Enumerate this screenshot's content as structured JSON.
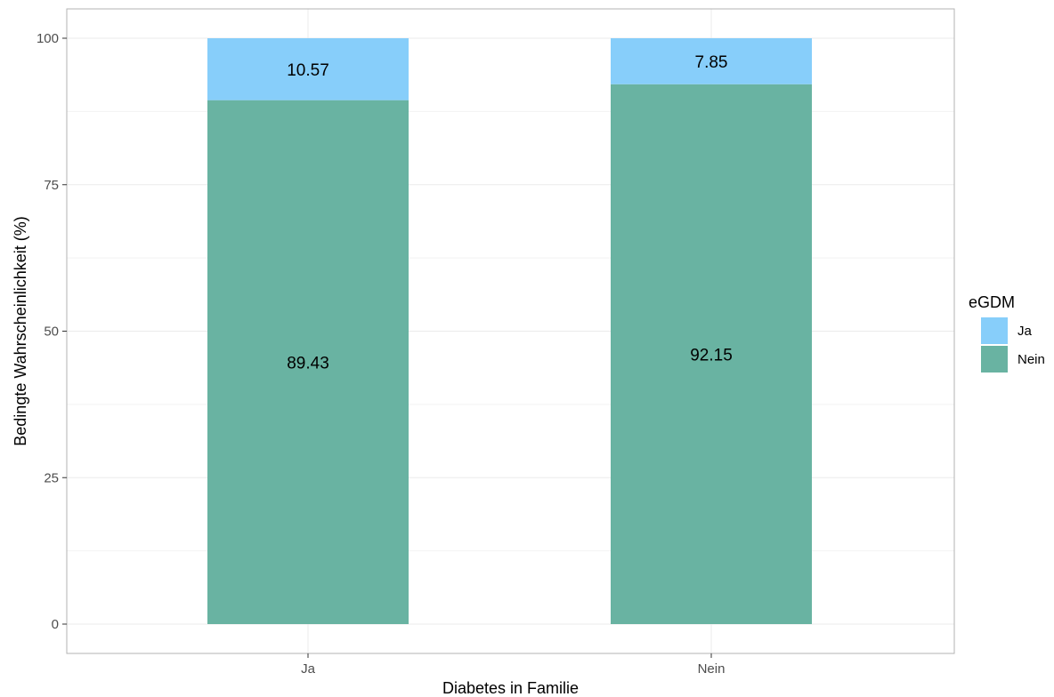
{
  "chart_data": {
    "type": "bar",
    "stacked": true,
    "categories": [
      "Ja",
      "Nein"
    ],
    "series": [
      {
        "name": "Nein",
        "values": [
          89.43,
          92.15
        ],
        "labels": [
          "89.43",
          "92.15"
        ],
        "color": "#69b3a2"
      },
      {
        "name": "Ja",
        "values": [
          10.57,
          7.85
        ],
        "labels": [
          "10.57",
          "7.85"
        ],
        "color": "#87cefa"
      }
    ],
    "xlabel": "Diabetes in Familie",
    "ylabel": "Bedingte Wahrscheinlichkeit (%)",
    "ylim": [
      0,
      100
    ],
    "yticks": [
      0,
      25,
      50,
      75,
      100
    ],
    "legend": {
      "title": "eGDM",
      "order": [
        "Ja",
        "Nein"
      ],
      "placement": "right"
    },
    "grid": true,
    "colors": {
      "grid_major": "#ebebeb",
      "grid_minor": "#f2f2f2",
      "panel_border": "#b3b3b3"
    }
  }
}
